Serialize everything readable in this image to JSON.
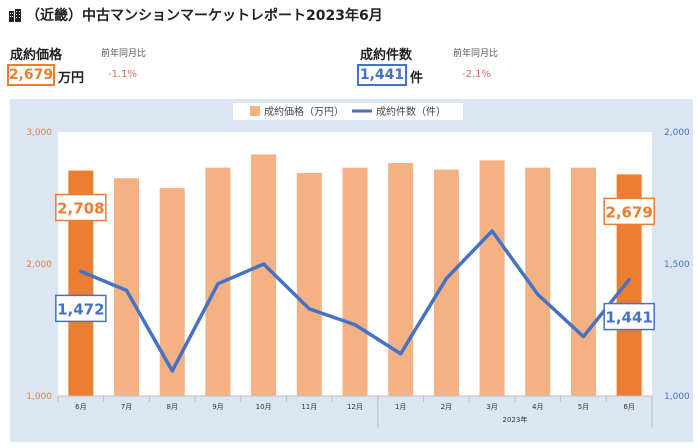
{
  "header": {
    "icon": "building-icon",
    "title": "（近畿）中古マンションマーケットレポート2023年6月"
  },
  "kpi": {
    "price": {
      "label": "成約価格",
      "yoy_label": "前年同月比",
      "value": "2,679",
      "unit": "万円",
      "yoy": "-1.1%"
    },
    "count": {
      "label": "成約件数",
      "yoy_label": "前年同月比",
      "value": "1,441",
      "unit": "件",
      "yoy": "-2.1%"
    }
  },
  "colors": {
    "bar": "#f4b183",
    "bar_highlight": "#ed7d31",
    "line": "#4472c4",
    "plot_bg": "#dce6f2",
    "left_axis": "#ed7d31",
    "right_axis": "#4472c4"
  },
  "chart_data": {
    "type": "bar+line",
    "categories": [
      "6月",
      "7月",
      "8月",
      "9月",
      "10月",
      "11月",
      "12月",
      "1月",
      "2月",
      "3月",
      "4月",
      "5月",
      "6月"
    ],
    "year_label": "2023年",
    "legend": {
      "position": "top",
      "bar_label": "成約価格（万円）",
      "line_label": "成約件数（件）"
    },
    "series": [
      {
        "name": "成約価格（万円）",
        "axis": "left",
        "type": "bar",
        "values": [
          2708,
          2650,
          2575,
          2730,
          2830,
          2690,
          2730,
          2765,
          2715,
          2785,
          2730,
          2730,
          2679
        ],
        "highlight": [
          0,
          12
        ]
      },
      {
        "name": "成約件数（件）",
        "axis": "right",
        "type": "line",
        "values": [
          1472,
          1400,
          1095,
          1425,
          1500,
          1330,
          1270,
          1160,
          1445,
          1625,
          1385,
          1225,
          1441
        ]
      }
    ],
    "left_axis": {
      "ylim": [
        1000,
        3000
      ],
      "ticks": [
        "1,000",
        "2,000",
        "3,000"
      ],
      "tick_values": [
        1000,
        2000,
        3000
      ]
    },
    "right_axis": {
      "ylim": [
        1000,
        2000
      ],
      "ticks": [
        "1,000",
        "1,500",
        "2,000"
      ],
      "tick_values": [
        1000,
        1500,
        2000
      ]
    },
    "callouts": [
      {
        "series": 0,
        "index": 0,
        "text": "2,708"
      },
      {
        "series": 0,
        "index": 12,
        "text": "2,679"
      },
      {
        "series": 1,
        "index": 0,
        "text": "1,472"
      },
      {
        "series": 1,
        "index": 12,
        "text": "1,441"
      }
    ]
  }
}
